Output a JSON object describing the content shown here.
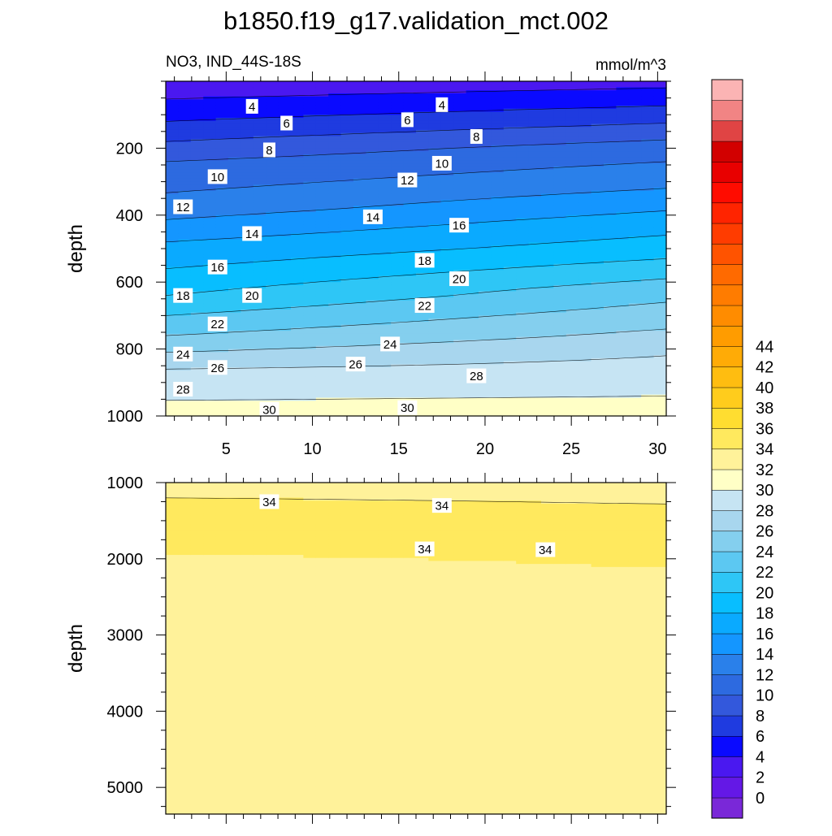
{
  "title": "b1850.f19_g17.validation_mct.002",
  "subtitle_left": "NO3, IND_44S-18S",
  "subtitle_right": "mmol/m^3",
  "chart_data": {
    "type": "heatmap",
    "variable": "NO3",
    "region": "IND_44S-18S",
    "units": "mmol/m^3",
    "ylabel": "depth",
    "xlabel": "",
    "x_ticks": [
      5,
      10,
      15,
      20,
      25,
      30
    ],
    "xlim": [
      1.5,
      30.5
    ],
    "contour_interval": 2,
    "colorbar": {
      "levels": [
        0,
        2,
        4,
        6,
        8,
        10,
        12,
        14,
        16,
        18,
        20,
        22,
        24,
        26,
        28,
        30,
        32,
        34,
        36,
        38,
        40,
        42,
        44
      ],
      "colors": [
        "#7a28d8",
        "#6418e6",
        "#4a18f0",
        "#0a0aff",
        "#1f3be0",
        "#3358dc",
        "#2d6ae0",
        "#2a80ea",
        "#1496ff",
        "#0aaaff",
        "#08beff",
        "#2ec6f6",
        "#5cc8f2",
        "#84cfee",
        "#a8d6ee",
        "#c6e4f3",
        "#ffffc6",
        "#fff29a",
        "#ffe95e",
        "#ffdd30",
        "#ffcc1c",
        "#ffbd10",
        "#ffab06",
        "#ff9c00",
        "#ff8c00",
        "#ff7c00",
        "#ff6a00",
        "#ff5300",
        "#ff3c00",
        "#ff2400",
        "#ff0c00",
        "#e80000",
        "#d20000",
        "#e04444",
        "#f18484",
        "#fbb4b4"
      ],
      "labels": [
        "0",
        "2",
        "4",
        "6",
        "8",
        "10",
        "12",
        "14",
        "16",
        "18",
        "20",
        "22",
        "24",
        "26",
        "28",
        "30",
        "32",
        "34",
        "36",
        "38",
        "40",
        "42",
        "44"
      ]
    },
    "panels": [
      {
        "name": "upper",
        "ylim": [
          1000,
          0
        ],
        "y_ticks": [
          200,
          400,
          600,
          800,
          1000
        ],
        "profiles": [
          {
            "x": 1.5,
            "depth": [
              20,
              120,
              240,
              380,
              480,
              560,
              640,
              700,
              760,
              860,
              1000
            ],
            "value": [
              3,
              6,
              10,
              13,
              16,
              18,
              20,
              22,
              24,
              28,
              31
            ]
          },
          {
            "x": 30.5,
            "depth": [
              20,
              100,
              200,
              320,
              420,
              500,
              560,
              620,
              700,
              820,
              1000
            ],
            "value": [
              4,
              7,
              11,
              14,
              17,
              19,
              21,
              23,
              25,
              28,
              31
            ]
          }
        ],
        "contour_labels": [
          {
            "x": 6.5,
            "y": 75,
            "text": "4"
          },
          {
            "x": 17.5,
            "y": 70,
            "text": "4"
          },
          {
            "x": 8.5,
            "y": 125,
            "text": "6"
          },
          {
            "x": 15.5,
            "y": 115,
            "text": "6"
          },
          {
            "x": 7.5,
            "y": 205,
            "text": "8"
          },
          {
            "x": 19.5,
            "y": 165,
            "text": "8"
          },
          {
            "x": 4.5,
            "y": 285,
            "text": "10"
          },
          {
            "x": 17.5,
            "y": 245,
            "text": "10"
          },
          {
            "x": 2.5,
            "y": 375,
            "text": "12"
          },
          {
            "x": 15.5,
            "y": 295,
            "text": "12"
          },
          {
            "x": 6.5,
            "y": 455,
            "text": "14"
          },
          {
            "x": 13.5,
            "y": 405,
            "text": "14"
          },
          {
            "x": 4.5,
            "y": 555,
            "text": "16"
          },
          {
            "x": 18.5,
            "y": 430,
            "text": "16"
          },
          {
            "x": 2.5,
            "y": 640,
            "text": "18"
          },
          {
            "x": 16.5,
            "y": 535,
            "text": "18"
          },
          {
            "x": 6.5,
            "y": 640,
            "text": "20"
          },
          {
            "x": 18.5,
            "y": 590,
            "text": "20"
          },
          {
            "x": 4.5,
            "y": 725,
            "text": "22"
          },
          {
            "x": 16.5,
            "y": 670,
            "text": "22"
          },
          {
            "x": 2.5,
            "y": 815,
            "text": "24"
          },
          {
            "x": 14.5,
            "y": 785,
            "text": "24"
          },
          {
            "x": 4.5,
            "y": 855,
            "text": "26"
          },
          {
            "x": 12.5,
            "y": 845,
            "text": "26"
          },
          {
            "x": 2.5,
            "y": 920,
            "text": "28"
          },
          {
            "x": 19.5,
            "y": 880,
            "text": "28"
          },
          {
            "x": 7.5,
            "y": 980,
            "text": "30"
          },
          {
            "x": 15.5,
            "y": 975,
            "text": "30"
          }
        ]
      },
      {
        "name": "lower",
        "ylim": [
          5350,
          1000
        ],
        "y_ticks": [
          1000,
          2000,
          3000,
          4000,
          5000
        ],
        "profiles": [
          {
            "x": 1.5,
            "depth": [
              1000,
              1250,
              1750,
              2050,
              4000,
              5350
            ],
            "value": [
              33.2,
              34.2,
              34.6,
              33.6,
              33.0,
              32.8
            ]
          },
          {
            "x": 30.5,
            "depth": [
              1000,
              1350,
              1850,
              2300,
              4300,
              5350
            ],
            "value": [
              33.2,
              34.2,
              34.6,
              33.6,
              33.0,
              32.8
            ]
          }
        ],
        "contour_labels": [
          {
            "x": 7.5,
            "y": 1250,
            "text": "34"
          },
          {
            "x": 17.5,
            "y": 1300,
            "text": "34"
          },
          {
            "x": 16.5,
            "y": 1870,
            "text": "34"
          },
          {
            "x": 23.5,
            "y": 1880,
            "text": "34"
          }
        ]
      }
    ]
  }
}
